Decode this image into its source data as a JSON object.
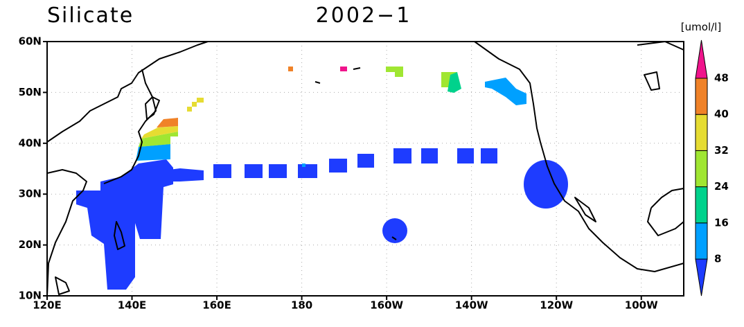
{
  "map": {
    "title": "Silicate",
    "period": "2002−1",
    "unit": "[umol/l]",
    "x_labels": [
      "120E",
      "140E",
      "160E",
      "180",
      "160W",
      "140W",
      "120W",
      "100W"
    ],
    "y_labels": [
      "10N",
      "20N",
      "30N",
      "40N",
      "50N",
      "60N"
    ],
    "colorbar": {
      "levels": [
        8,
        16,
        24,
        32,
        40,
        48
      ],
      "colors": [
        "#1e3cff",
        "#00a0ff",
        "#00d28c",
        "#a0e632",
        "#e6dc32",
        "#f08228",
        "#f0148c"
      ]
    }
  }
}
